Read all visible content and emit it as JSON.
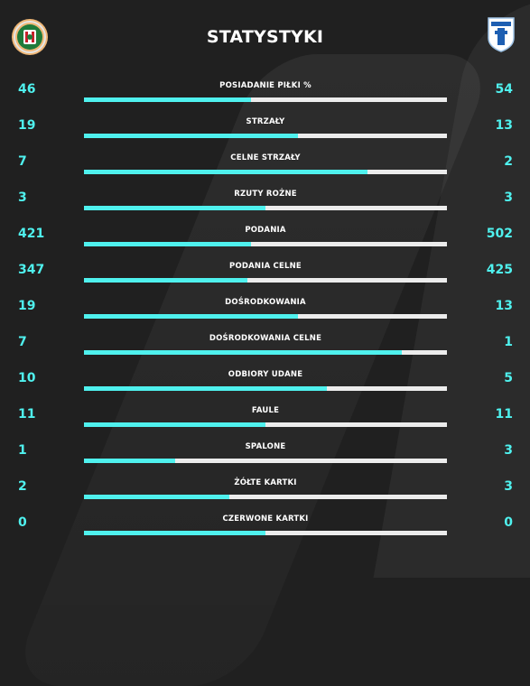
{
  "header": {
    "title": "STATYSTYKI"
  },
  "colors": {
    "accent": "#4ff1ee",
    "track": "#ececec",
    "background": "#202020"
  },
  "home_team": {
    "logo_icon": "zaglebie-lubin-crest"
  },
  "away_team": {
    "logo_icon": "lech-poznan-crest"
  },
  "stats": [
    {
      "label": "POSIADANIE PIŁKI %",
      "home": "46",
      "away": "54",
      "home_share": 0.46
    },
    {
      "label": "STRZAŁY",
      "home": "19",
      "away": "13",
      "home_share": 0.59
    },
    {
      "label": "CELNE STRZAŁY",
      "home": "7",
      "away": "2",
      "home_share": 0.78
    },
    {
      "label": "RZUTY ROŻNE",
      "home": "3",
      "away": "3",
      "home_share": 0.5
    },
    {
      "label": "PODANIA",
      "home": "421",
      "away": "502",
      "home_share": 0.46
    },
    {
      "label": "PODANIA CELNE",
      "home": "347",
      "away": "425",
      "home_share": 0.45
    },
    {
      "label": "DOŚRODKOWANIA",
      "home": "19",
      "away": "13",
      "home_share": 0.59
    },
    {
      "label": "DOŚRODKOWANIA CELNE",
      "home": "7",
      "away": "1",
      "home_share": 0.875
    },
    {
      "label": "ODBIORY UDANE",
      "home": "10",
      "away": "5",
      "home_share": 0.67
    },
    {
      "label": "FAULE",
      "home": "11",
      "away": "11",
      "home_share": 0.5
    },
    {
      "label": "SPALONE",
      "home": "1",
      "away": "3",
      "home_share": 0.25
    },
    {
      "label": "ŻÓŁTE KARTKI",
      "home": "2",
      "away": "3",
      "home_share": 0.4
    },
    {
      "label": "CZERWONE KARTKI",
      "home": "0",
      "away": "0",
      "home_share": 0.5
    }
  ]
}
